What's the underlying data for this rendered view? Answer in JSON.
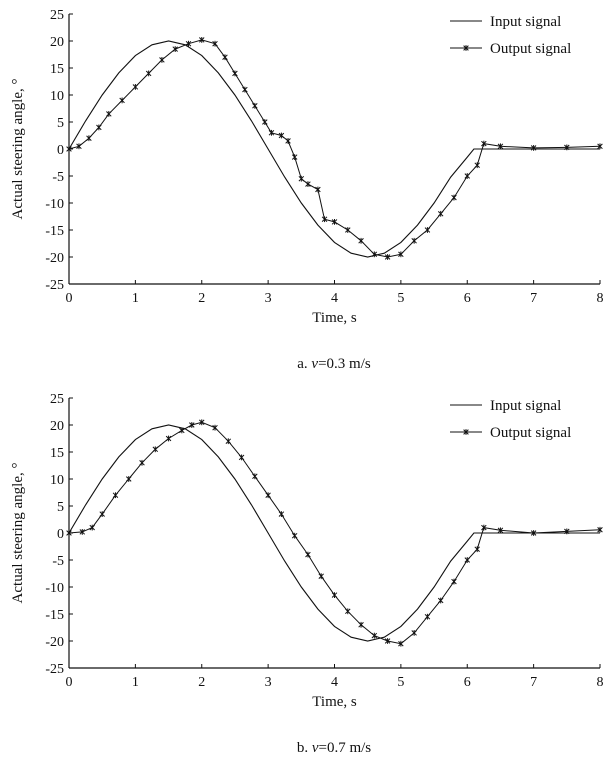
{
  "chart_data": [
    {
      "type": "line",
      "panel": "a",
      "caption": {
        "prefix": "a. ",
        "var": "v",
        "rest": "=0.3 m/s"
      },
      "xlabel": "Time, s",
      "ylabel": "Actual steering angle, °",
      "xlim": [
        0,
        8
      ],
      "ylim": [
        -25,
        25
      ],
      "xticks": [
        0,
        1,
        2,
        3,
        4,
        5,
        6,
        7,
        8
      ],
      "yticks": [
        25,
        20,
        15,
        10,
        5,
        0,
        -5,
        -10,
        -15,
        -20,
        -25
      ],
      "grid": false,
      "legend_position": "top-right",
      "series": [
        {
          "name": "Input signal",
          "style": "line",
          "color": "#111111",
          "x": [
            0,
            0.25,
            0.5,
            0.75,
            1.0,
            1.25,
            1.5,
            1.75,
            2.0,
            2.25,
            2.5,
            2.75,
            3.0,
            3.25,
            3.5,
            3.75,
            4.0,
            4.25,
            4.5,
            4.75,
            5.0,
            5.25,
            5.5,
            5.75,
            6.0,
            6.1,
            6.5,
            7.0,
            7.5,
            8.0
          ],
          "y": [
            0,
            5.2,
            10.0,
            14.1,
            17.3,
            19.3,
            20.0,
            19.3,
            17.3,
            14.1,
            10.0,
            5.2,
            0,
            -5.2,
            -10.0,
            -14.1,
            -17.3,
            -19.3,
            -20.0,
            -19.3,
            -17.3,
            -14.1,
            -10.0,
            -5.2,
            -1.5,
            0,
            0,
            0,
            0,
            0
          ]
        },
        {
          "name": "Output signal",
          "style": "line-marker",
          "color": "#111111",
          "x": [
            0,
            0.15,
            0.3,
            0.45,
            0.6,
            0.8,
            1.0,
            1.2,
            1.4,
            1.6,
            1.8,
            2.0,
            2.2,
            2.35,
            2.5,
            2.65,
            2.8,
            2.95,
            3.05,
            3.2,
            3.3,
            3.4,
            3.5,
            3.6,
            3.75,
            3.85,
            4.0,
            4.2,
            4.4,
            4.6,
            4.8,
            5.0,
            5.2,
            5.4,
            5.6,
            5.8,
            6.0,
            6.15,
            6.25,
            6.5,
            7.0,
            7.5,
            8.0
          ],
          "y": [
            0,
            0.5,
            2.0,
            4.0,
            6.5,
            9.0,
            11.5,
            14.0,
            16.5,
            18.5,
            19.5,
            20.2,
            19.5,
            17.0,
            14.0,
            11.0,
            8.0,
            5.0,
            3.0,
            2.5,
            1.5,
            -1.5,
            -5.5,
            -6.5,
            -7.5,
            -13.0,
            -13.5,
            -15.0,
            -17.0,
            -19.5,
            -20.0,
            -19.5,
            -17.0,
            -15.0,
            -12.0,
            -9.0,
            -5.0,
            -3.0,
            1.0,
            0.5,
            0.2,
            0.3,
            0.5
          ]
        }
      ]
    },
    {
      "type": "line",
      "panel": "b",
      "caption": {
        "prefix": "b. ",
        "var": "v",
        "rest": "=0.7 m/s"
      },
      "xlabel": "Time, s",
      "ylabel": "Actual steering angle, °",
      "xlim": [
        0,
        8
      ],
      "ylim": [
        -25,
        25
      ],
      "xticks": [
        0,
        1,
        2,
        3,
        4,
        5,
        6,
        7,
        8
      ],
      "yticks": [
        25,
        20,
        15,
        10,
        5,
        0,
        -5,
        -10,
        -15,
        -20,
        -25
      ],
      "grid": false,
      "legend_position": "top-right",
      "series": [
        {
          "name": "Input signal",
          "style": "line",
          "color": "#111111",
          "x": [
            0,
            0.25,
            0.5,
            0.75,
            1.0,
            1.25,
            1.5,
            1.75,
            2.0,
            2.25,
            2.5,
            2.75,
            3.0,
            3.25,
            3.5,
            3.75,
            4.0,
            4.25,
            4.5,
            4.75,
            5.0,
            5.25,
            5.5,
            5.75,
            6.0,
            6.1,
            6.5,
            7.0,
            7.5,
            8.0
          ],
          "y": [
            0,
            5.2,
            10.0,
            14.1,
            17.3,
            19.3,
            20.0,
            19.3,
            17.3,
            14.1,
            10.0,
            5.2,
            0,
            -5.2,
            -10.0,
            -14.1,
            -17.3,
            -19.3,
            -20.0,
            -19.3,
            -17.3,
            -14.1,
            -10.0,
            -5.2,
            -1.5,
            0,
            0,
            0,
            0,
            0
          ]
        },
        {
          "name": "Output signal",
          "style": "line-marker",
          "color": "#111111",
          "x": [
            0,
            0.2,
            0.35,
            0.5,
            0.7,
            0.9,
            1.1,
            1.3,
            1.5,
            1.7,
            1.85,
            2.0,
            2.2,
            2.4,
            2.6,
            2.8,
            3.0,
            3.2,
            3.4,
            3.6,
            3.8,
            4.0,
            4.2,
            4.4,
            4.6,
            4.8,
            5.0,
            5.2,
            5.4,
            5.6,
            5.8,
            6.0,
            6.15,
            6.25,
            6.5,
            7.0,
            7.5,
            8.0
          ],
          "y": [
            0,
            0.2,
            1.0,
            3.5,
            7.0,
            10.0,
            13.0,
            15.5,
            17.5,
            19.0,
            20.0,
            20.5,
            19.5,
            17.0,
            14.0,
            10.5,
            7.0,
            3.5,
            -0.5,
            -4.0,
            -8.0,
            -11.5,
            -14.5,
            -17.0,
            -19.0,
            -20.0,
            -20.5,
            -18.5,
            -15.5,
            -12.5,
            -9.0,
            -5.0,
            -3.0,
            1.0,
            0.5,
            0.0,
            0.3,
            0.6
          ]
        }
      ]
    }
  ]
}
